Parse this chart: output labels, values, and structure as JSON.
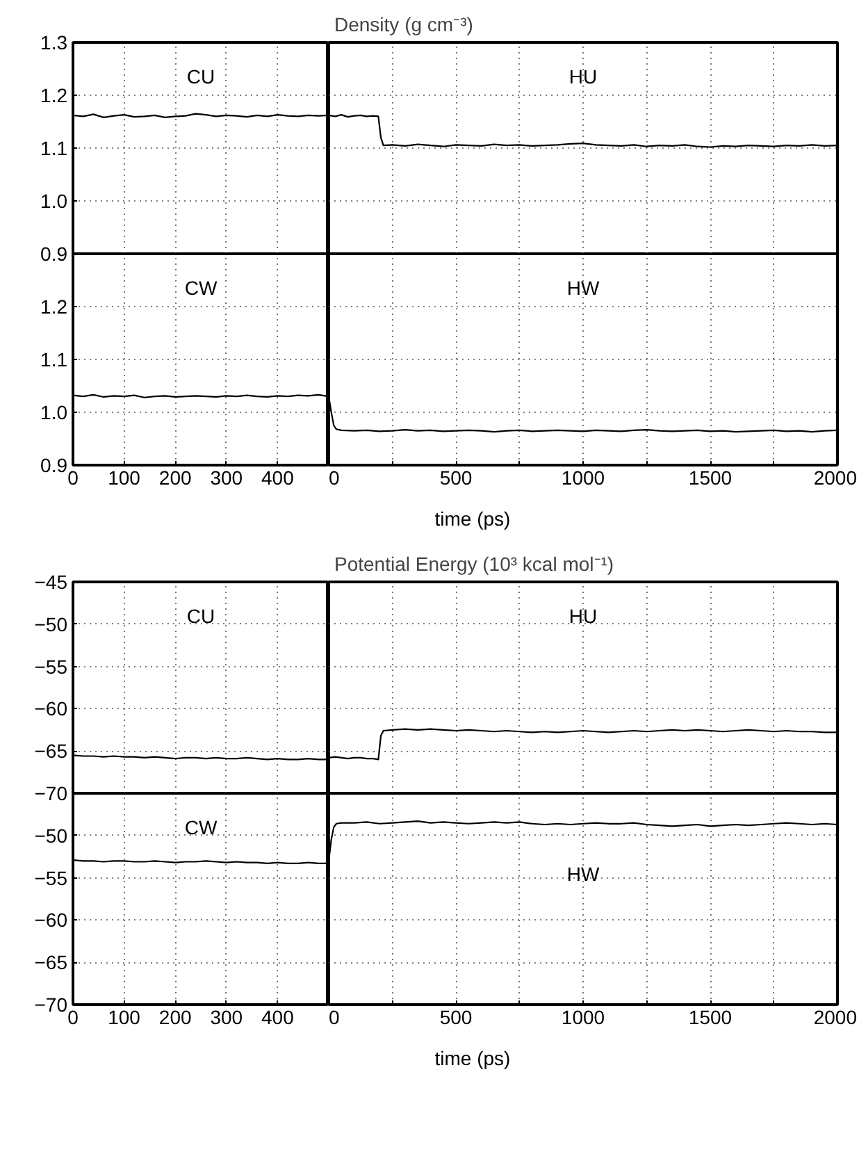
{
  "chart_data": [
    {
      "type": "line",
      "annotations": [
        "CU"
      ],
      "xlim": [
        0,
        500
      ],
      "ylim": [
        0.9,
        1.3
      ],
      "xticks": [
        0,
        100,
        200,
        300,
        400,
        {
          "value": 500,
          "label": null
        }
      ],
      "yticks": [
        0.9,
        {
          "value": 1,
          "label": "1.0"
        },
        1.1,
        1.2,
        1.3
      ],
      "grid": true,
      "tick_labels": "y",
      "series": [
        {
          "color": "#000000",
          "x": [
            0,
            20,
            40,
            60,
            80,
            100,
            120,
            140,
            160,
            180,
            200,
            220,
            240,
            260,
            280,
            300,
            320,
            340,
            360,
            380,
            400,
            420,
            440,
            460,
            480,
            500
          ],
          "values": [
            1.162,
            1.16,
            1.164,
            1.158,
            1.161,
            1.163,
            1.159,
            1.16,
            1.162,
            1.158,
            1.16,
            1.161,
            1.165,
            1.163,
            1.16,
            1.162,
            1.161,
            1.159,
            1.162,
            1.16,
            1.163,
            1.161,
            1.16,
            1.162,
            1.161,
            1.162
          ]
        }
      ]
    },
    {
      "type": "line",
      "title": "Density (g cm⁻³)",
      "annotations": [
        "HU"
      ],
      "xlim": [
        0,
        2000
      ],
      "ylim": [
        0.9,
        1.3
      ],
      "xticks": [
        0,
        {
          "value": 250,
          "label": null
        },
        500,
        {
          "value": 750,
          "label": null
        },
        1000,
        {
          "value": 1250,
          "label": null
        },
        1500,
        {
          "value": 1750,
          "label": null
        },
        2000
      ],
      "yticks": [
        0.9,
        1.0,
        1.1,
        1.2,
        1.3
      ],
      "grid": true,
      "tick_labels": false,
      "series": [
        {
          "color": "#000000",
          "x": [
            0,
            25,
            50,
            75,
            100,
            125,
            150,
            175,
            195,
            205,
            215,
            250,
            300,
            350,
            400,
            450,
            500,
            550,
            600,
            650,
            700,
            750,
            800,
            850,
            900,
            950,
            1000,
            1050,
            1100,
            1150,
            1200,
            1250,
            1300,
            1350,
            1400,
            1450,
            1500,
            1550,
            1600,
            1650,
            1700,
            1750,
            1800,
            1850,
            1900,
            1950,
            2000
          ],
          "values": [
            1.162,
            1.16,
            1.163,
            1.159,
            1.161,
            1.162,
            1.16,
            1.161,
            1.16,
            1.12,
            1.105,
            1.106,
            1.104,
            1.107,
            1.105,
            1.103,
            1.106,
            1.105,
            1.104,
            1.107,
            1.105,
            1.106,
            1.104,
            1.105,
            1.106,
            1.108,
            1.109,
            1.106,
            1.105,
            1.104,
            1.106,
            1.103,
            1.105,
            1.104,
            1.106,
            1.103,
            1.102,
            1.104,
            1.103,
            1.105,
            1.104,
            1.103,
            1.105,
            1.104,
            1.106,
            1.104,
            1.105
          ]
        }
      ]
    },
    {
      "type": "line",
      "annotations": [
        "CW"
      ],
      "xlim": [
        0,
        500
      ],
      "ylim": [
        0.9,
        1.3
      ],
      "xticks": [
        0,
        100,
        200,
        300,
        400,
        {
          "value": 500,
          "label": null
        }
      ],
      "yticks": [
        0.9,
        {
          "value": 1,
          "label": "1.0"
        },
        1.1,
        1.2,
        {
          "value": 1.3,
          "label": null
        }
      ],
      "grid": true,
      "series": [
        {
          "color": "#000000",
          "x": [
            0,
            20,
            40,
            60,
            80,
            100,
            120,
            140,
            160,
            180,
            200,
            220,
            240,
            260,
            280,
            300,
            320,
            340,
            360,
            380,
            400,
            420,
            440,
            460,
            480,
            500
          ],
          "values": [
            1.032,
            1.03,
            1.033,
            1.029,
            1.031,
            1.03,
            1.032,
            1.028,
            1.03,
            1.031,
            1.029,
            1.03,
            1.031,
            1.03,
            1.029,
            1.031,
            1.03,
            1.032,
            1.03,
            1.029,
            1.031,
            1.03,
            1.032,
            1.031,
            1.033,
            1.03
          ]
        }
      ]
    },
    {
      "type": "line",
      "xlabel": "time (ps)",
      "annotations": [
        "HW"
      ],
      "xlim": [
        0,
        2000
      ],
      "ylim": [
        0.9,
        1.3
      ],
      "xticks": [
        0,
        {
          "value": 250,
          "label": null
        },
        500,
        {
          "value": 750,
          "label": null
        },
        1000,
        {
          "value": 1250,
          "label": null
        },
        1500,
        {
          "value": 1750,
          "label": null
        },
        2000
      ],
      "yticks": [
        0.9,
        1.0,
        1.1,
        1.2,
        1.3
      ],
      "grid": true,
      "tick_labels": "x",
      "series": [
        {
          "color": "#000000",
          "x": [
            0,
            10,
            20,
            30,
            50,
            100,
            150,
            200,
            250,
            300,
            350,
            400,
            450,
            500,
            550,
            600,
            650,
            700,
            750,
            800,
            850,
            900,
            950,
            1000,
            1050,
            1100,
            1150,
            1200,
            1250,
            1300,
            1350,
            1400,
            1450,
            1500,
            1550,
            1600,
            1650,
            1700,
            1750,
            1800,
            1850,
            1900,
            1950,
            2000
          ],
          "values": [
            1.03,
            1.0,
            0.975,
            0.968,
            0.966,
            0.965,
            0.966,
            0.964,
            0.965,
            0.967,
            0.965,
            0.966,
            0.964,
            0.965,
            0.966,
            0.965,
            0.963,
            0.965,
            0.966,
            0.964,
            0.965,
            0.966,
            0.965,
            0.964,
            0.966,
            0.965,
            0.964,
            0.966,
            0.967,
            0.965,
            0.964,
            0.965,
            0.966,
            0.964,
            0.965,
            0.963,
            0.964,
            0.965,
            0.966,
            0.964,
            0.965,
            0.963,
            0.965,
            0.966
          ]
        }
      ]
    },
    {
      "type": "line",
      "annotations": [
        "CU"
      ],
      "xlim": [
        0,
        500
      ],
      "ylim": [
        -70,
        -45
      ],
      "xticks": [
        0,
        100,
        200,
        300,
        400,
        {
          "value": 500,
          "label": null
        }
      ],
      "yticks": [
        {
          "value": -70,
          "label": "−70"
        },
        {
          "value": -65,
          "label": "−65"
        },
        {
          "value": -60,
          "label": "−60"
        },
        {
          "value": -55,
          "label": "−55"
        },
        {
          "value": -50,
          "label": "−50"
        },
        {
          "value": -45,
          "label": "−45"
        }
      ],
      "grid": true,
      "tick_labels": "y",
      "series": [
        {
          "color": "#000000",
          "x": [
            0,
            20,
            40,
            60,
            80,
            100,
            120,
            140,
            160,
            180,
            200,
            220,
            240,
            260,
            280,
            300,
            320,
            340,
            360,
            380,
            400,
            420,
            440,
            460,
            480,
            500
          ],
          "values": [
            -65.5,
            -65.6,
            -65.6,
            -65.7,
            -65.6,
            -65.7,
            -65.7,
            -65.8,
            -65.7,
            -65.8,
            -65.9,
            -65.8,
            -65.8,
            -65.9,
            -65.8,
            -65.9,
            -65.9,
            -65.8,
            -65.9,
            -66.0,
            -65.9,
            -66.0,
            -66.0,
            -65.9,
            -66.0,
            -66.0
          ]
        }
      ]
    },
    {
      "type": "line",
      "title": "Potential Energy (10³ kcal mol⁻¹)",
      "annotations": [
        "HU"
      ],
      "xlim": [
        0,
        2000
      ],
      "ylim": [
        -70,
        -45
      ],
      "xticks": [
        0,
        {
          "value": 250,
          "label": null
        },
        500,
        {
          "value": 750,
          "label": null
        },
        1000,
        {
          "value": 1250,
          "label": null
        },
        1500,
        {
          "value": 1750,
          "label": null
        },
        2000
      ],
      "yticks": [
        -70,
        -65,
        -60,
        -55,
        -50,
        -45
      ],
      "grid": true,
      "tick_labels": false,
      "series": [
        {
          "color": "#000000",
          "x": [
            0,
            25,
            50,
            75,
            100,
            125,
            150,
            175,
            195,
            205,
            215,
            250,
            300,
            350,
            400,
            450,
            500,
            550,
            600,
            650,
            700,
            750,
            800,
            850,
            900,
            950,
            1000,
            1050,
            1100,
            1150,
            1200,
            1250,
            1300,
            1350,
            1400,
            1450,
            1500,
            1550,
            1600,
            1650,
            1700,
            1750,
            1800,
            1850,
            1900,
            1950,
            2000
          ],
          "values": [
            -65.8,
            -65.7,
            -65.8,
            -65.9,
            -65.8,
            -65.8,
            -65.9,
            -65.9,
            -66.0,
            -63.2,
            -62.6,
            -62.5,
            -62.4,
            -62.5,
            -62.4,
            -62.5,
            -62.6,
            -62.5,
            -62.6,
            -62.7,
            -62.6,
            -62.7,
            -62.8,
            -62.7,
            -62.8,
            -62.7,
            -62.6,
            -62.7,
            -62.8,
            -62.7,
            -62.6,
            -62.7,
            -62.6,
            -62.5,
            -62.6,
            -62.5,
            -62.6,
            -62.7,
            -62.6,
            -62.5,
            -62.6,
            -62.7,
            -62.6,
            -62.7,
            -62.7,
            -62.8,
            -62.8
          ]
        }
      ]
    },
    {
      "type": "line",
      "annotations": [
        "CW"
      ],
      "xlim": [
        0,
        500
      ],
      "ylim": [
        -70,
        -45
      ],
      "xticks": [
        0,
        100,
        200,
        300,
        400,
        {
          "value": 500,
          "label": null
        }
      ],
      "yticks": [
        {
          "value": -70,
          "label": "−70"
        },
        {
          "value": -65,
          "label": "−65"
        },
        {
          "value": -60,
          "label": "−60"
        },
        {
          "value": -55,
          "label": "−55"
        },
        {
          "value": -50,
          "label": "−50"
        },
        {
          "value": -45,
          "label": null
        }
      ],
      "grid": true,
      "series": [
        {
          "color": "#000000",
          "x": [
            0,
            20,
            40,
            60,
            80,
            100,
            120,
            140,
            160,
            180,
            200,
            220,
            240,
            260,
            280,
            300,
            320,
            340,
            360,
            380,
            400,
            420,
            440,
            460,
            480,
            500
          ],
          "values": [
            -52.9,
            -53.0,
            -53.0,
            -53.1,
            -53.0,
            -53.0,
            -53.1,
            -53.1,
            -53.0,
            -53.1,
            -53.2,
            -53.1,
            -53.1,
            -53.0,
            -53.1,
            -53.2,
            -53.1,
            -53.2,
            -53.2,
            -53.3,
            -53.2,
            -53.3,
            -53.3,
            -53.2,
            -53.3,
            -53.3
          ]
        }
      ]
    },
    {
      "type": "line",
      "xlabel": "time (ps)",
      "annotations": [
        "HW"
      ],
      "xlim": [
        0,
        2000
      ],
      "ylim": [
        -70,
        -45
      ],
      "xticks": [
        0,
        {
          "value": 250,
          "label": null
        },
        500,
        {
          "value": 750,
          "label": null
        },
        1000,
        {
          "value": 1250,
          "label": null
        },
        1500,
        {
          "value": 1750,
          "label": null
        },
        2000
      ],
      "yticks": [
        -70,
        -65,
        -60,
        -55,
        -50,
        -45
      ],
      "grid": true,
      "tick_labels": "x",
      "series": [
        {
          "color": "#000000",
          "x": [
            0,
            10,
            20,
            30,
            50,
            100,
            150,
            200,
            250,
            300,
            350,
            400,
            450,
            500,
            550,
            600,
            650,
            700,
            750,
            800,
            850,
            900,
            950,
            1000,
            1050,
            1100,
            1150,
            1200,
            1250,
            1300,
            1350,
            1400,
            1450,
            1500,
            1550,
            1600,
            1650,
            1700,
            1750,
            1800,
            1850,
            1900,
            1950,
            2000
          ],
          "values": [
            -53.0,
            -50.5,
            -49.0,
            -48.6,
            -48.5,
            -48.5,
            -48.4,
            -48.6,
            -48.5,
            -48.4,
            -48.3,
            -48.5,
            -48.4,
            -48.5,
            -48.6,
            -48.5,
            -48.4,
            -48.5,
            -48.4,
            -48.6,
            -48.7,
            -48.6,
            -48.7,
            -48.6,
            -48.5,
            -48.6,
            -48.6,
            -48.5,
            -48.7,
            -48.8,
            -48.9,
            -48.8,
            -48.7,
            -48.9,
            -48.8,
            -48.7,
            -48.8,
            -48.7,
            -48.6,
            -48.5,
            -48.6,
            -48.7,
            -48.6,
            -48.7
          ]
        }
      ]
    }
  ]
}
